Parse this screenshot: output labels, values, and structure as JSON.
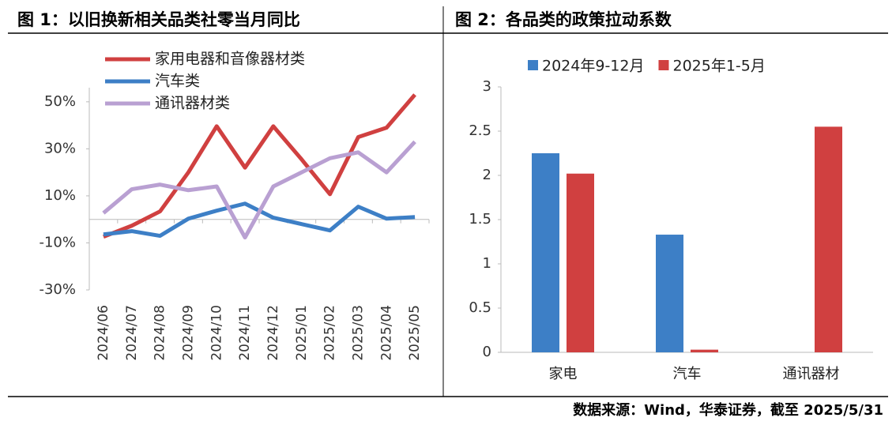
{
  "chart_data": [
    {
      "type": "line",
      "title": "图 1：以旧换新相关品类社零当月同比",
      "categories": [
        "2024/06",
        "2024/07",
        "2024/08",
        "2024/09",
        "2024/10",
        "2024/11",
        "2024/12",
        "2025/01",
        "2025/02",
        "2025/03",
        "2025/04",
        "2025/05"
      ],
      "series": [
        {
          "name": "家用电器和音像器材类",
          "color": "#d04040",
          "values": [
            -7.4,
            -2.7,
            3.4,
            20,
            39.6,
            22,
            39.6,
            25.5,
            10.7,
            35,
            39,
            53
          ]
        },
        {
          "name": "汽车类",
          "color": "#3d7fc6",
          "values": [
            -6.4,
            -5,
            -7,
            0.3,
            3.7,
            6.7,
            0.7,
            -2,
            -4.7,
            5.4,
            0.3,
            1
          ]
        },
        {
          "name": "通讯器材类",
          "color": "#b9a0d2",
          "values": [
            2.7,
            12.8,
            14.8,
            12.4,
            14,
            -7.7,
            14,
            20,
            26,
            28.5,
            20,
            33
          ]
        }
      ],
      "ylim": [
        -30,
        56
      ],
      "yticks": [
        {
          "value": -30,
          "label": "-30%"
        },
        {
          "value": -10,
          "label": "-10%"
        },
        {
          "value": 10,
          "label": "10%"
        },
        {
          "value": 30,
          "label": "30%"
        },
        {
          "value": 50,
          "label": "50%"
        }
      ],
      "legend": "top-left"
    },
    {
      "type": "bar",
      "title": "图 2：各品类的政策拉动系数",
      "categories": [
        "家电",
        "汽车",
        "通讯器材"
      ],
      "series": [
        {
          "name": "2024年9-12月",
          "color": "#3d7fc6",
          "values": [
            2.25,
            1.33,
            null
          ]
        },
        {
          "name": "2025年1-5月",
          "color": "#d04040",
          "values": [
            2.02,
            0.03,
            2.55
          ]
        }
      ],
      "ylim": [
        0,
        3
      ],
      "yticks": [
        0,
        0.5,
        1,
        1.5,
        2,
        2.5,
        3
      ],
      "legend": "top"
    }
  ],
  "source": "数据来源：Wind，华泰证券，截至 2025/5/31"
}
